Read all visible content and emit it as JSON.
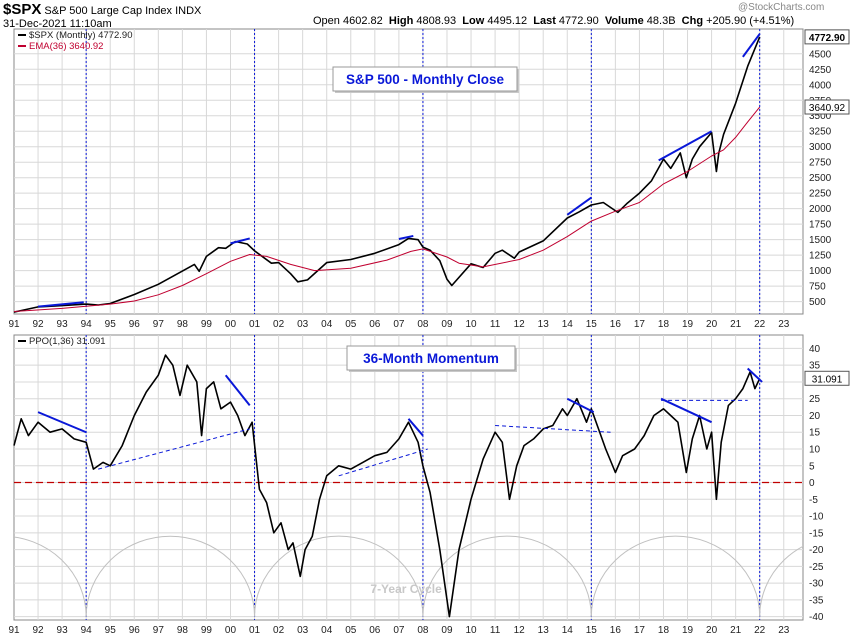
{
  "header": {
    "symbol": "$SPX",
    "name": "S&P 500 Large Cap Index",
    "exchange": "INDX",
    "date": "31-Dec-2021 11:10am",
    "open_label": "Open",
    "open": "4602.82",
    "high_label": "High",
    "high": "4808.93",
    "low_label": "Low",
    "low": "4495.12",
    "last_label": "Last",
    "last": "4772.90",
    "volume_label": "Volume",
    "volume": "48.3B",
    "chg_label": "Chg",
    "chg": "+205.90 (+4.51%)",
    "watermark": "@StockCharts.com"
  },
  "colors": {
    "price": "#000000",
    "ema": "#c00030",
    "trend": "#0a18d8",
    "cycle": "#c0c0c0",
    "zero": "#c00000",
    "grid": "#d8d8d8"
  },
  "chart_data": [
    {
      "type": "line",
      "legend": [
        {
          "text": "$SPX (Monthly) 4772.90",
          "color": "#000000"
        },
        {
          "text": "EMA(36) 3640.92",
          "color": "#c00030"
        }
      ],
      "annotation": "S&P 500 - Monthly Close",
      "price_tag": "4772.90",
      "ema_tag": "3640.92",
      "y_ticks": [
        500,
        750,
        1000,
        1250,
        1500,
        1750,
        2000,
        2250,
        2500,
        2750,
        3000,
        3250,
        3500,
        3750,
        4000,
        4250,
        4500
      ],
      "y_range": [
        300,
        4900
      ],
      "x_ticks": [
        "91",
        "92",
        "93",
        "94",
        "95",
        "96",
        "97",
        "98",
        "99",
        "00",
        "01",
        "02",
        "03",
        "04",
        "05",
        "06",
        "07",
        "08",
        "09",
        "10",
        "11",
        "12",
        "13",
        "14",
        "15",
        "16",
        "17",
        "18",
        "19",
        "20",
        "21",
        "22",
        "23"
      ],
      "x_range": [
        1991.0,
        2023.8
      ],
      "series": [
        {
          "name": "$SPX (Monthly)",
          "key": "price",
          "x": [
            1991.0,
            1992.0,
            1993.0,
            1994.0,
            1994.5,
            1995.0,
            1996.0,
            1997.0,
            1997.8,
            1998.5,
            1998.7,
            1999.0,
            1999.5,
            1999.8,
            2000.2,
            2000.7,
            2001.0,
            2001.7,
            2002.0,
            2002.5,
            2002.8,
            2003.2,
            2004.0,
            2005.0,
            2006.0,
            2007.0,
            2007.4,
            2007.8,
            2008.0,
            2008.3,
            2008.7,
            2009.0,
            2009.2,
            2010.0,
            2010.5,
            2011.0,
            2011.3,
            2011.8,
            2012.0,
            2013.0,
            2014.0,
            2014.5,
            2015.0,
            2015.5,
            2016.1,
            2016.5,
            2017.0,
            2017.5,
            2018.0,
            2018.3,
            2018.7,
            2018.95,
            2019.2,
            2019.5,
            2020.0,
            2020.2,
            2020.3,
            2020.5,
            2021.0,
            2021.5,
            2022.0
          ],
          "y": [
            330,
            415,
            435,
            460,
            445,
            470,
            615,
            780,
            950,
            1100,
            990,
            1230,
            1370,
            1360,
            1470,
            1430,
            1320,
            1120,
            1130,
            950,
            820,
            850,
            1130,
            1180,
            1280,
            1420,
            1520,
            1500,
            1380,
            1330,
            1160,
            860,
            760,
            1110,
            1050,
            1280,
            1330,
            1200,
            1300,
            1480,
            1850,
            1950,
            2060,
            2100,
            1940,
            2090,
            2250,
            2450,
            2800,
            2650,
            2900,
            2500,
            2800,
            3000,
            3230,
            2600,
            2900,
            3200,
            3700,
            4300,
            4772
          ]
        },
        {
          "name": "EMA(36)",
          "key": "ema",
          "x": [
            1991.0,
            1993.0,
            1995.0,
            1996.0,
            1997.0,
            1998.0,
            1999.0,
            2000.0,
            2000.8,
            2001.5,
            2002.5,
            2003.5,
            2005.0,
            2006.5,
            2007.5,
            2008.0,
            2009.0,
            2009.5,
            2010.5,
            2012.0,
            2013.0,
            2014.0,
            2015.0,
            2016.0,
            2017.0,
            2018.0,
            2019.0,
            2020.0,
            2020.5,
            2021.0,
            2021.5,
            2022.0
          ],
          "y": [
            340,
            390,
            460,
            510,
            610,
            760,
            950,
            1150,
            1260,
            1230,
            1100,
            1000,
            1040,
            1170,
            1310,
            1350,
            1220,
            1120,
            1060,
            1180,
            1330,
            1550,
            1800,
            1960,
            2100,
            2400,
            2600,
            2850,
            2950,
            3150,
            3400,
            3640
          ]
        }
      ],
      "trendlines": [
        {
          "x": [
            1992.0,
            1993.9
          ],
          "y": [
            420,
            490
          ],
          "style": "solid"
        },
        {
          "x": [
            2000.0,
            2000.8
          ],
          "y": [
            1440,
            1520
          ],
          "style": "solid"
        },
        {
          "x": [
            2007.0,
            2007.6
          ],
          "y": [
            1510,
            1560
          ],
          "style": "solid"
        },
        {
          "x": [
            2014.0,
            2015.0
          ],
          "y": [
            1900,
            2180
          ],
          "style": "solid"
        },
        {
          "x": [
            2017.8,
            2020.0
          ],
          "y": [
            2780,
            3250
          ],
          "style": "solid"
        },
        {
          "x": [
            2021.3,
            2022.0
          ],
          "y": [
            4450,
            4820
          ],
          "style": "solid"
        }
      ]
    },
    {
      "type": "line",
      "legend": [
        {
          "text": "PPO(1,36) 31.091",
          "color": "#000000"
        }
      ],
      "annotation": "36-Month Momentum",
      "cycle_label": "7-Year Cycle",
      "value_tag": "31.091",
      "y_ticks": [
        -40,
        -35,
        -30,
        -25,
        -20,
        -15,
        -10,
        -5,
        0,
        5,
        10,
        15,
        20,
        25,
        30,
        35,
        40
      ],
      "y_range": [
        -41,
        44
      ],
      "x_ticks": [
        "91",
        "92",
        "93",
        "94",
        "95",
        "96",
        "97",
        "98",
        "99",
        "00",
        "01",
        "02",
        "03",
        "04",
        "05",
        "06",
        "07",
        "08",
        "09",
        "10",
        "11",
        "12",
        "13",
        "14",
        "15",
        "16",
        "17",
        "18",
        "19",
        "20",
        "21",
        "22",
        "23"
      ],
      "x_range": [
        1991.0,
        2023.8
      ],
      "cycle_lows": [
        1994.0,
        2001.0,
        2008.0,
        2015.0,
        2022.0
      ],
      "series": [
        {
          "name": "PPO(1,36)",
          "x": [
            1991.0,
            1991.3,
            1991.6,
            1992.0,
            1992.5,
            1993.0,
            1993.5,
            1994.0,
            1994.3,
            1994.7,
            1995.0,
            1995.5,
            1996.0,
            1996.5,
            1997.0,
            1997.3,
            1997.6,
            1997.9,
            1998.2,
            1998.6,
            1998.8,
            1999.0,
            1999.3,
            1999.6,
            2000.0,
            2000.3,
            2000.6,
            2000.9,
            2001.2,
            2001.5,
            2001.8,
            2002.1,
            2002.4,
            2002.6,
            2002.9,
            2003.1,
            2003.4,
            2003.7,
            2004.0,
            2004.5,
            2005.0,
            2005.5,
            2006.0,
            2006.5,
            2007.0,
            2007.4,
            2007.8,
            2008.0,
            2008.3,
            2008.7,
            2008.9,
            2009.1,
            2009.5,
            2010.0,
            2010.5,
            2011.0,
            2011.3,
            2011.6,
            2011.9,
            2012.2,
            2012.6,
            2013.0,
            2013.4,
            2013.8,
            2014.0,
            2014.4,
            2014.8,
            2015.0,
            2015.3,
            2015.6,
            2016.0,
            2016.3,
            2016.8,
            2017.2,
            2017.6,
            2018.0,
            2018.3,
            2018.6,
            2018.95,
            2019.2,
            2019.5,
            2019.8,
            2020.0,
            2020.2,
            2020.4,
            2020.7,
            2021.0,
            2021.3,
            2021.6,
            2021.8,
            2022.0
          ],
          "y": [
            11,
            19,
            14,
            18,
            15,
            16,
            13,
            12,
            4,
            6,
            5,
            11,
            20,
            27,
            32,
            38,
            35,
            26,
            35,
            30,
            14,
            28,
            30,
            22,
            24,
            20,
            14,
            18,
            -2,
            -6,
            -15,
            -12,
            -20,
            -18,
            -28,
            -20,
            -16,
            -5,
            2,
            5,
            4,
            6,
            8,
            9,
            13,
            18,
            12,
            5,
            -3,
            -20,
            -30,
            -40,
            -20,
            -5,
            7,
            15,
            12,
            -5,
            5,
            11,
            13,
            16,
            17,
            22,
            20,
            25,
            18,
            22,
            16,
            10,
            3,
            8,
            10,
            14,
            20,
            22,
            20,
            18,
            3,
            13,
            20,
            10,
            15,
            -5,
            12,
            23,
            25,
            28,
            33,
            28,
            31
          ]
        }
      ],
      "trendlines": [
        {
          "x": [
            1992.0,
            1994.0
          ],
          "y": [
            21,
            15
          ],
          "style": "solid"
        },
        {
          "x": [
            1999.8,
            2000.8
          ],
          "y": [
            32,
            23
          ],
          "style": "solid"
        },
        {
          "x": [
            2007.4,
            2008.0
          ],
          "y": [
            19,
            14
          ],
          "style": "solid"
        },
        {
          "x": [
            2014.0,
            2015.1
          ],
          "y": [
            25,
            21
          ],
          "style": "solid"
        },
        {
          "x": [
            2017.9,
            2020.0
          ],
          "y": [
            25,
            18
          ],
          "style": "solid"
        },
        {
          "x": [
            2021.5,
            2022.1
          ],
          "y": [
            34,
            30
          ],
          "style": "solid"
        },
        {
          "x": [
            1994.5,
            2000.8
          ],
          "y": [
            4,
            16
          ],
          "style": "dashed"
        },
        {
          "x": [
            2004.5,
            2008.2
          ],
          "y": [
            2,
            10
          ],
          "style": "dashed"
        },
        {
          "x": [
            2011.0,
            2015.8
          ],
          "y": [
            17,
            15
          ],
          "style": "dashed"
        },
        {
          "x": [
            2017.9,
            2021.5
          ],
          "y": [
            24.5,
            24.5
          ],
          "style": "dashed"
        }
      ]
    }
  ]
}
